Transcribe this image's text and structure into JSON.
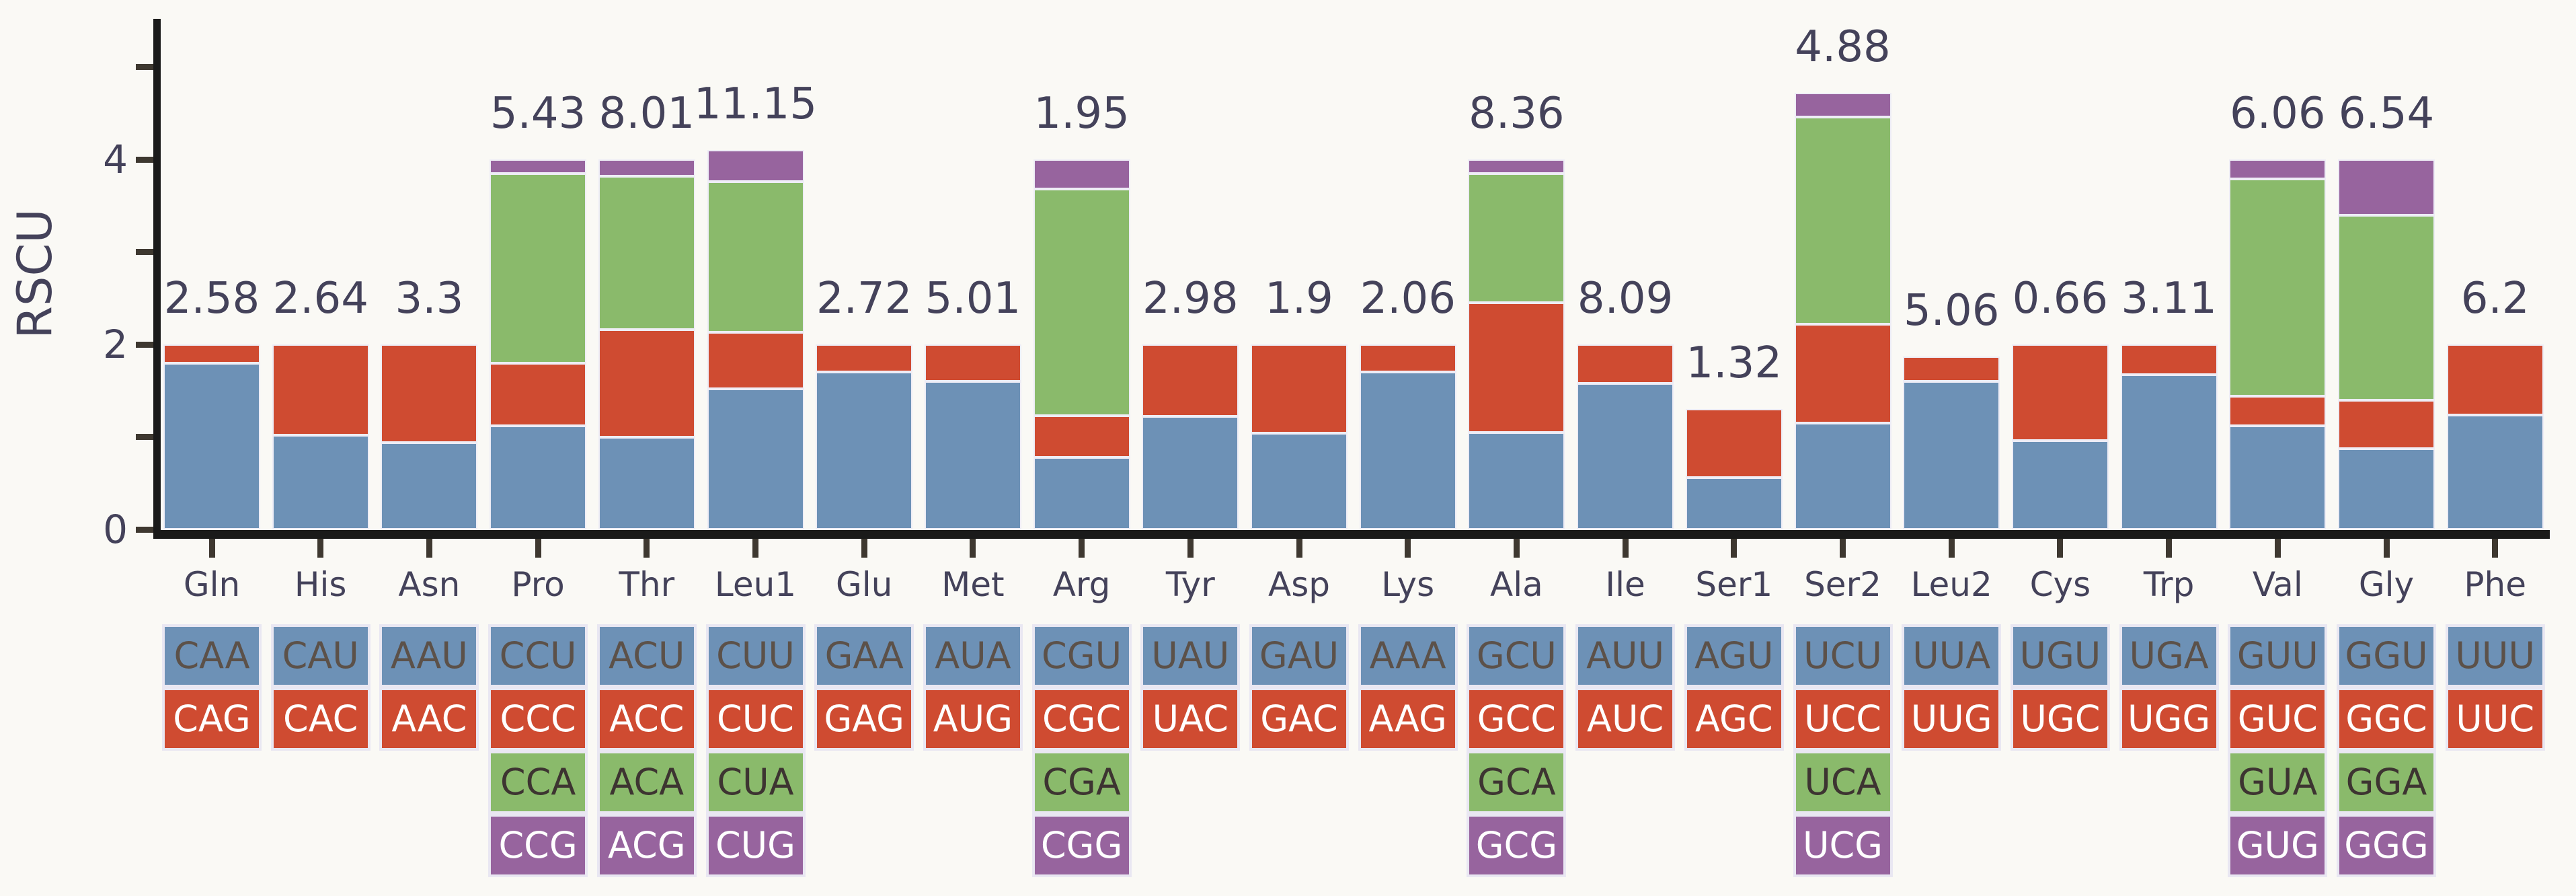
{
  "chart_data": {
    "type": "bar",
    "stacked": true,
    "title": "",
    "xlabel": "",
    "ylabel": "RSCU",
    "ylim": [
      0,
      5.5
    ],
    "yticks_major": [
      0,
      2,
      4
    ],
    "yticks_minor": [
      1,
      3,
      5
    ],
    "grid": false,
    "legend": "none",
    "background": "#faf9f5",
    "axis_color": "#1a1a1a",
    "tick_color": "#3e3830",
    "label_color": "#44425a",
    "series_colors": [
      "#6d91b6",
      "#cf4b31",
      "#8aba6b",
      "#97649e"
    ],
    "codon_row_text_colors": [
      "#5c5149",
      "#ffffff",
      "#3d3431",
      "#ffffff"
    ],
    "categories": [
      "Gln",
      "His",
      "Asn",
      "Pro",
      "Thr",
      "Leu1",
      "Glu",
      "Met",
      "Arg",
      "Tyr",
      "Asp",
      "Lys",
      "Ala",
      "Ile",
      "Ser1",
      "Ser2",
      "Leu2",
      "Cys",
      "Trp",
      "Val",
      "Gly",
      "Phe"
    ],
    "bar_value_labels": [
      "2.58",
      "2.64",
      "3.3",
      "5.43",
      "8.01",
      "11.15",
      "2.72",
      "5.01",
      "1.95",
      "2.98",
      "1.9",
      "2.06",
      "8.36",
      "8.09",
      "1.32",
      "4.88",
      "5.06",
      "0.66",
      "3.11",
      "6.06",
      "6.54",
      "6.2"
    ],
    "amino_acids": [
      {
        "name": "Gln",
        "value_label": "2.58",
        "codons": [
          "CAA",
          "CAG"
        ],
        "rscu": [
          1.8,
          0.2
        ]
      },
      {
        "name": "His",
        "value_label": "2.64",
        "codons": [
          "CAU",
          "CAC"
        ],
        "rscu": [
          1.02,
          0.98
        ]
      },
      {
        "name": "Asn",
        "value_label": "3.3",
        "codons": [
          "AAU",
          "AAC"
        ],
        "rscu": [
          0.94,
          1.06
        ]
      },
      {
        "name": "Pro",
        "value_label": "5.43",
        "codons": [
          "CCU",
          "CCC",
          "CCA",
          "CCG"
        ],
        "rscu": [
          1.12,
          0.68,
          2.05,
          0.15
        ]
      },
      {
        "name": "Thr",
        "value_label": "8.01",
        "codons": [
          "ACU",
          "ACC",
          "ACA",
          "ACG"
        ],
        "rscu": [
          1.0,
          1.16,
          1.66,
          0.18
        ]
      },
      {
        "name": "Leu1",
        "value_label": "11.15",
        "codons": [
          "CUU",
          "CUC",
          "CUA",
          "CUG"
        ],
        "rscu": [
          1.52,
          0.61,
          1.63,
          0.34
        ]
      },
      {
        "name": "Glu",
        "value_label": "2.72",
        "codons": [
          "GAA",
          "GAG"
        ],
        "rscu": [
          1.7,
          0.3
        ]
      },
      {
        "name": "Met",
        "value_label": "5.01",
        "codons": [
          "AUA",
          "AUG"
        ],
        "rscu": [
          1.6,
          0.4
        ]
      },
      {
        "name": "Arg",
        "value_label": "1.95",
        "codons": [
          "CGU",
          "CGC",
          "CGA",
          "CGG"
        ],
        "rscu": [
          0.78,
          0.45,
          2.45,
          0.32
        ]
      },
      {
        "name": "Tyr",
        "value_label": "2.98",
        "codons": [
          "UAU",
          "UAC"
        ],
        "rscu": [
          1.22,
          0.78
        ]
      },
      {
        "name": "Asp",
        "value_label": "1.9",
        "codons": [
          "GAU",
          "GAC"
        ],
        "rscu": [
          1.04,
          0.96
        ]
      },
      {
        "name": "Lys",
        "value_label": "2.06",
        "codons": [
          "AAA",
          "AAG"
        ],
        "rscu": [
          1.7,
          0.3
        ]
      },
      {
        "name": "Ala",
        "value_label": "8.36",
        "codons": [
          "GCU",
          "GCC",
          "GCA",
          "GCG"
        ],
        "rscu": [
          1.05,
          1.4,
          1.4,
          0.15
        ]
      },
      {
        "name": "Ile",
        "value_label": "8.09",
        "codons": [
          "AUU",
          "AUC"
        ],
        "rscu": [
          1.58,
          0.42
        ]
      },
      {
        "name": "Ser1",
        "value_label": "1.32",
        "codons": [
          "AGU",
          "AGC"
        ],
        "rscu": [
          0.56,
          0.74
        ]
      },
      {
        "name": "Ser2",
        "value_label": "4.88",
        "codons": [
          "UCU",
          "UCC",
          "UCA",
          "UCG"
        ],
        "rscu": [
          1.15,
          1.07,
          2.24,
          0.26
        ]
      },
      {
        "name": "Leu2",
        "value_label": "5.06",
        "codons": [
          "UUA",
          "UUG"
        ],
        "rscu": [
          1.6,
          0.27
        ]
      },
      {
        "name": "Cys",
        "value_label": "0.66",
        "codons": [
          "UGU",
          "UGC"
        ],
        "rscu": [
          0.96,
          1.04
        ]
      },
      {
        "name": "Trp",
        "value_label": "3.11",
        "codons": [
          "UGA",
          "UGG"
        ],
        "rscu": [
          1.67,
          0.33
        ]
      },
      {
        "name": "Val",
        "value_label": "6.06",
        "codons": [
          "GUU",
          "GUC",
          "GUA",
          "GUG"
        ],
        "rscu": [
          1.12,
          0.32,
          2.35,
          0.21
        ]
      },
      {
        "name": "Gly",
        "value_label": "6.54",
        "codons": [
          "GGU",
          "GGC",
          "GGA",
          "GGG"
        ],
        "rscu": [
          0.87,
          0.53,
          2.0,
          0.6
        ]
      },
      {
        "name": "Phe",
        "value_label": "6.2",
        "codons": [
          "UUU",
          "UUC"
        ],
        "rscu": [
          1.24,
          0.76
        ]
      }
    ]
  }
}
